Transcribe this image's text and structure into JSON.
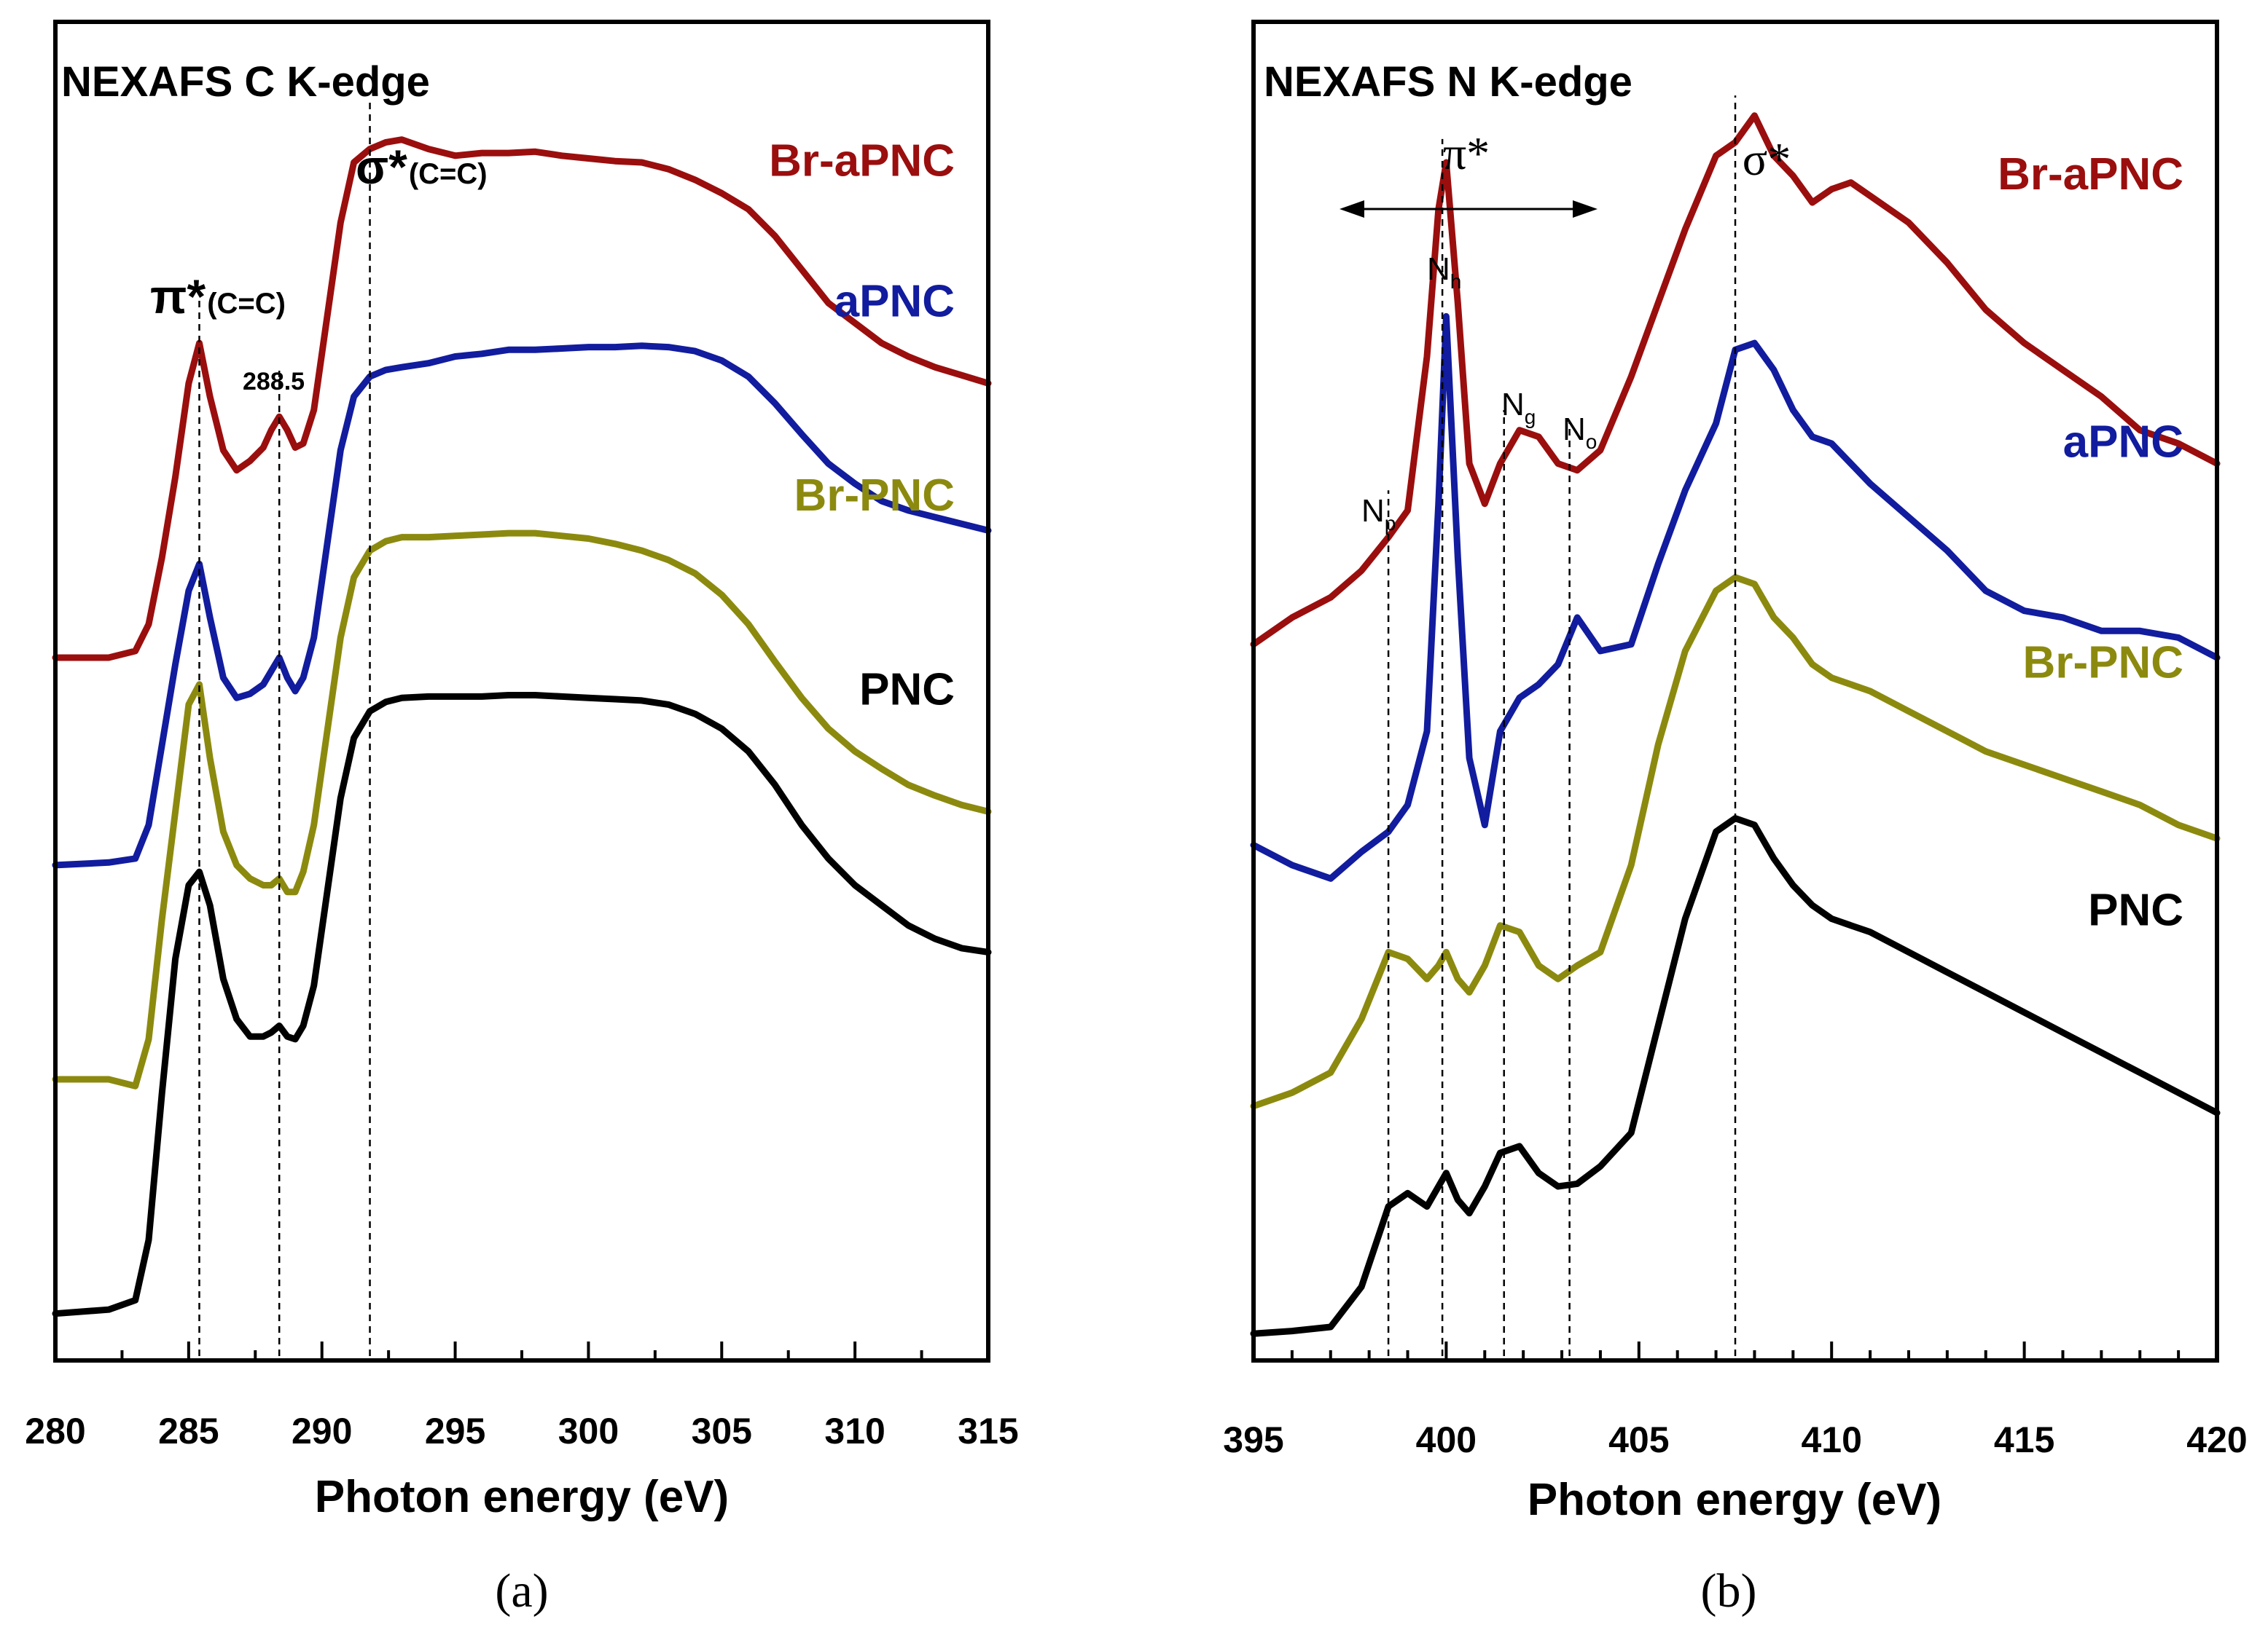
{
  "colors": {
    "Br-aPNC": "#9B0E0E",
    "aPNC": "#111C9E",
    "Br-PNC": "#8C8A0E",
    "PNC": "#000000"
  },
  "chart_data": [
    {
      "type": "line",
      "panel": "(a)",
      "title": "NEXAFS C K-edge",
      "xlabel": "Photon energy (eV)",
      "ylabel": "",
      "xlim": [
        280,
        315
      ],
      "xticks": [
        280,
        285,
        290,
        295,
        300,
        305,
        310,
        315
      ],
      "minor_step": 2.5,
      "ylim": [
        0,
        10
      ],
      "grid": false,
      "annotations": {
        "pi_main": "π*",
        "pi_sub": "(C=C)",
        "sigma_main": "σ*",
        "sigma_sub": "(C=C)",
        "mid": "288.5"
      },
      "reference_lines": [
        285.4,
        288.4,
        291.8
      ],
      "series": [
        {
          "name": "Br-aPNC",
          "label_y": 8.85,
          "x": [
            280,
            282,
            283,
            283.5,
            284,
            284.5,
            285,
            285.4,
            285.8,
            286.3,
            286.8,
            287.3,
            287.8,
            288.1,
            288.4,
            288.7,
            289,
            289.3,
            289.7,
            290.2,
            290.7,
            291.2,
            291.8,
            292.4,
            293,
            294,
            295,
            296,
            297,
            298,
            299,
            300,
            301,
            302,
            303,
            304,
            305,
            306,
            307,
            308,
            309,
            310,
            311,
            312,
            313,
            314,
            315
          ],
          "y": [
            5.25,
            5.25,
            5.3,
            5.5,
            6.0,
            6.6,
            7.3,
            7.6,
            7.2,
            6.8,
            6.65,
            6.72,
            6.82,
            6.95,
            7.05,
            6.95,
            6.82,
            6.85,
            7.1,
            7.8,
            8.5,
            8.95,
            9.05,
            9.1,
            9.12,
            9.05,
            9.0,
            9.02,
            9.02,
            9.03,
            9.0,
            8.98,
            8.96,
            8.95,
            8.9,
            8.82,
            8.72,
            8.6,
            8.4,
            8.15,
            7.9,
            7.75,
            7.6,
            7.5,
            7.42,
            7.36,
            7.3
          ]
        },
        {
          "name": "aPNC",
          "label_y": 7.8,
          "x": [
            280,
            282,
            283,
            283.5,
            284,
            284.5,
            285,
            285.4,
            285.8,
            286.3,
            286.8,
            287.3,
            287.8,
            288.1,
            288.4,
            288.7,
            289,
            289.3,
            289.7,
            290.2,
            290.7,
            291.2,
            291.8,
            292.4,
            293,
            294,
            295,
            296,
            297,
            298,
            299,
            300,
            301,
            302,
            303,
            304,
            305,
            306,
            307,
            308,
            309,
            310,
            311,
            312,
            313,
            314,
            315
          ],
          "y": [
            3.7,
            3.72,
            3.75,
            4.0,
            4.6,
            5.2,
            5.75,
            5.95,
            5.55,
            5.1,
            4.95,
            4.98,
            5.05,
            5.15,
            5.25,
            5.1,
            5.0,
            5.1,
            5.4,
            6.1,
            6.8,
            7.2,
            7.35,
            7.4,
            7.42,
            7.45,
            7.5,
            7.52,
            7.55,
            7.55,
            7.56,
            7.57,
            7.57,
            7.58,
            7.57,
            7.54,
            7.47,
            7.35,
            7.15,
            6.92,
            6.7,
            6.55,
            6.42,
            6.35,
            6.3,
            6.25,
            6.2
          ]
        },
        {
          "name": "Br-PNC",
          "label_y": 6.35,
          "x": [
            280,
            282,
            283,
            283.5,
            284,
            284.5,
            285,
            285.4,
            285.8,
            286.3,
            286.8,
            287.3,
            287.8,
            288.1,
            288.4,
            288.7,
            289,
            289.3,
            289.7,
            290.2,
            290.7,
            291.2,
            291.8,
            292.4,
            293,
            294,
            295,
            296,
            297,
            298,
            299,
            300,
            301,
            302,
            303,
            304,
            305,
            306,
            307,
            308,
            309,
            310,
            311,
            312,
            313,
            314,
            315
          ],
          "y": [
            2.1,
            2.1,
            2.05,
            2.4,
            3.3,
            4.1,
            4.9,
            5.05,
            4.5,
            3.95,
            3.7,
            3.6,
            3.55,
            3.55,
            3.6,
            3.5,
            3.5,
            3.65,
            4.0,
            4.7,
            5.4,
            5.85,
            6.05,
            6.12,
            6.15,
            6.15,
            6.16,
            6.17,
            6.18,
            6.18,
            6.16,
            6.14,
            6.1,
            6.05,
            5.98,
            5.88,
            5.72,
            5.5,
            5.22,
            4.95,
            4.72,
            4.55,
            4.42,
            4.3,
            4.22,
            4.15,
            4.1
          ]
        },
        {
          "name": "PNC",
          "label_y": 4.9,
          "x": [
            280,
            282,
            283,
            283.5,
            284,
            284.5,
            285,
            285.4,
            285.8,
            286.3,
            286.8,
            287.3,
            287.8,
            288.1,
            288.4,
            288.7,
            289,
            289.3,
            289.7,
            290.2,
            290.7,
            291.2,
            291.8,
            292.4,
            293,
            294,
            295,
            296,
            297,
            298,
            299,
            300,
            301,
            302,
            303,
            304,
            305,
            306,
            307,
            308,
            309,
            310,
            311,
            312,
            313,
            314,
            315
          ],
          "y": [
            0.35,
            0.38,
            0.45,
            0.9,
            2.0,
            3.0,
            3.55,
            3.65,
            3.4,
            2.85,
            2.55,
            2.42,
            2.42,
            2.45,
            2.5,
            2.42,
            2.4,
            2.5,
            2.8,
            3.5,
            4.2,
            4.65,
            4.85,
            4.92,
            4.95,
            4.96,
            4.96,
            4.96,
            4.97,
            4.97,
            4.96,
            4.95,
            4.94,
            4.93,
            4.9,
            4.83,
            4.72,
            4.55,
            4.3,
            4.0,
            3.75,
            3.55,
            3.4,
            3.25,
            3.15,
            3.08,
            3.05
          ]
        }
      ]
    },
    {
      "type": "line",
      "panel": "(b)",
      "title": "NEXAFS N K-edge",
      "xlabel": "Photon energy (eV)",
      "ylabel": "",
      "xlim": [
        395,
        420
      ],
      "xticks": [
        395,
        400,
        405,
        410,
        415,
        420
      ],
      "minor_step": 1,
      "ylim": [
        0,
        10
      ],
      "grid": false,
      "annotations": {
        "pi": "π*",
        "sigma": "σ*",
        "peaks": [
          {
            "main": "N",
            "sub": "p",
            "x": 398.6
          },
          {
            "main": "N",
            "sub": "h",
            "x": 400.0
          },
          {
            "main": "N",
            "sub": "g",
            "x": 401.6
          },
          {
            "main": "N",
            "sub": "o",
            "x": 403.2
          }
        ]
      },
      "reference_lines": [
        398.5,
        399.9,
        401.5,
        403.2,
        407.5
      ],
      "series": [
        {
          "name": "Br-aPNC",
          "label_y": 8.75,
          "x": [
            395,
            396,
            397,
            397.8,
            398.5,
            399,
            399.5,
            399.8,
            400,
            400.3,
            400.6,
            401,
            401.4,
            401.9,
            402.4,
            402.9,
            403.4,
            404,
            404.8,
            405.5,
            406.2,
            407,
            407.5,
            408,
            408.5,
            409,
            409.5,
            410,
            410.5,
            411,
            412,
            413,
            414,
            415,
            416,
            417,
            418,
            419,
            420
          ],
          "y": [
            5.35,
            5.55,
            5.7,
            5.9,
            6.15,
            6.35,
            7.5,
            8.6,
            8.95,
            7.9,
            6.7,
            6.4,
            6.7,
            6.95,
            6.9,
            6.7,
            6.65,
            6.8,
            7.35,
            7.9,
            8.45,
            9.0,
            9.1,
            9.3,
            9.0,
            8.85,
            8.65,
            8.75,
            8.8,
            8.7,
            8.5,
            8.2,
            7.85,
            7.6,
            7.4,
            7.2,
            6.95,
            6.85,
            6.7
          ]
        },
        {
          "name": "aPNC",
          "label_y": 6.75,
          "x": [
            395,
            396,
            397,
            397.8,
            398.5,
            399,
            399.5,
            399.8,
            400,
            400.3,
            400.6,
            401,
            401.4,
            401.9,
            402.4,
            402.9,
            403.4,
            404,
            404.8,
            405.5,
            406.2,
            407,
            407.5,
            408,
            408.5,
            409,
            409.5,
            410,
            410.5,
            411,
            412,
            413,
            414,
            415,
            416,
            417,
            418,
            419,
            420
          ],
          "y": [
            3.85,
            3.7,
            3.6,
            3.8,
            3.95,
            4.15,
            4.7,
            6.4,
            7.8,
            6.0,
            4.5,
            4.0,
            4.7,
            4.95,
            5.05,
            5.2,
            5.55,
            5.3,
            5.35,
            5.95,
            6.5,
            7.0,
            7.55,
            7.6,
            7.4,
            7.1,
            6.9,
            6.85,
            6.7,
            6.55,
            6.3,
            6.05,
            5.75,
            5.6,
            5.55,
            5.45,
            5.45,
            5.4,
            5.25
          ]
        },
        {
          "name": "Br-PNC",
          "label_y": 5.1,
          "x": [
            395,
            396,
            397,
            397.8,
            398.5,
            399,
            399.5,
            399.8,
            400,
            400.3,
            400.6,
            401,
            401.4,
            401.9,
            402.4,
            402.9,
            403.4,
            404,
            404.8,
            405.5,
            406.2,
            407,
            407.5,
            408,
            408.5,
            409,
            409.5,
            410,
            410.5,
            411,
            412,
            413,
            414,
            415,
            416,
            417,
            418,
            419,
            420
          ],
          "y": [
            1.9,
            2.0,
            2.15,
            2.55,
            3.05,
            3.0,
            2.85,
            2.95,
            3.05,
            2.85,
            2.75,
            2.95,
            3.25,
            3.2,
            2.95,
            2.85,
            2.95,
            3.05,
            3.7,
            4.6,
            5.3,
            5.75,
            5.85,
            5.8,
            5.55,
            5.4,
            5.2,
            5.1,
            5.05,
            5.0,
            4.85,
            4.7,
            4.55,
            4.45,
            4.35,
            4.25,
            4.15,
            4.0,
            3.9
          ]
        },
        {
          "name": "PNC",
          "label_y": 3.25,
          "x": [
            395,
            396,
            397,
            397.8,
            398.5,
            399,
            399.5,
            399.8,
            400,
            400.3,
            400.6,
            401,
            401.4,
            401.9,
            402.4,
            402.9,
            403.4,
            404,
            404.8,
            405.5,
            406.2,
            407,
            407.5,
            408,
            408.5,
            409,
            409.5,
            410,
            410.5,
            411,
            412,
            413,
            414,
            415,
            416,
            417,
            418,
            419,
            420
          ],
          "y": [
            0.2,
            0.22,
            0.25,
            0.55,
            1.15,
            1.25,
            1.15,
            1.3,
            1.4,
            1.2,
            1.1,
            1.3,
            1.55,
            1.6,
            1.4,
            1.3,
            1.32,
            1.45,
            1.7,
            2.5,
            3.3,
            3.95,
            4.05,
            4.0,
            3.75,
            3.55,
            3.4,
            3.3,
            3.25,
            3.2,
            3.05,
            2.9,
            2.75,
            2.6,
            2.45,
            2.3,
            2.15,
            2.0,
            1.85
          ]
        }
      ]
    }
  ]
}
